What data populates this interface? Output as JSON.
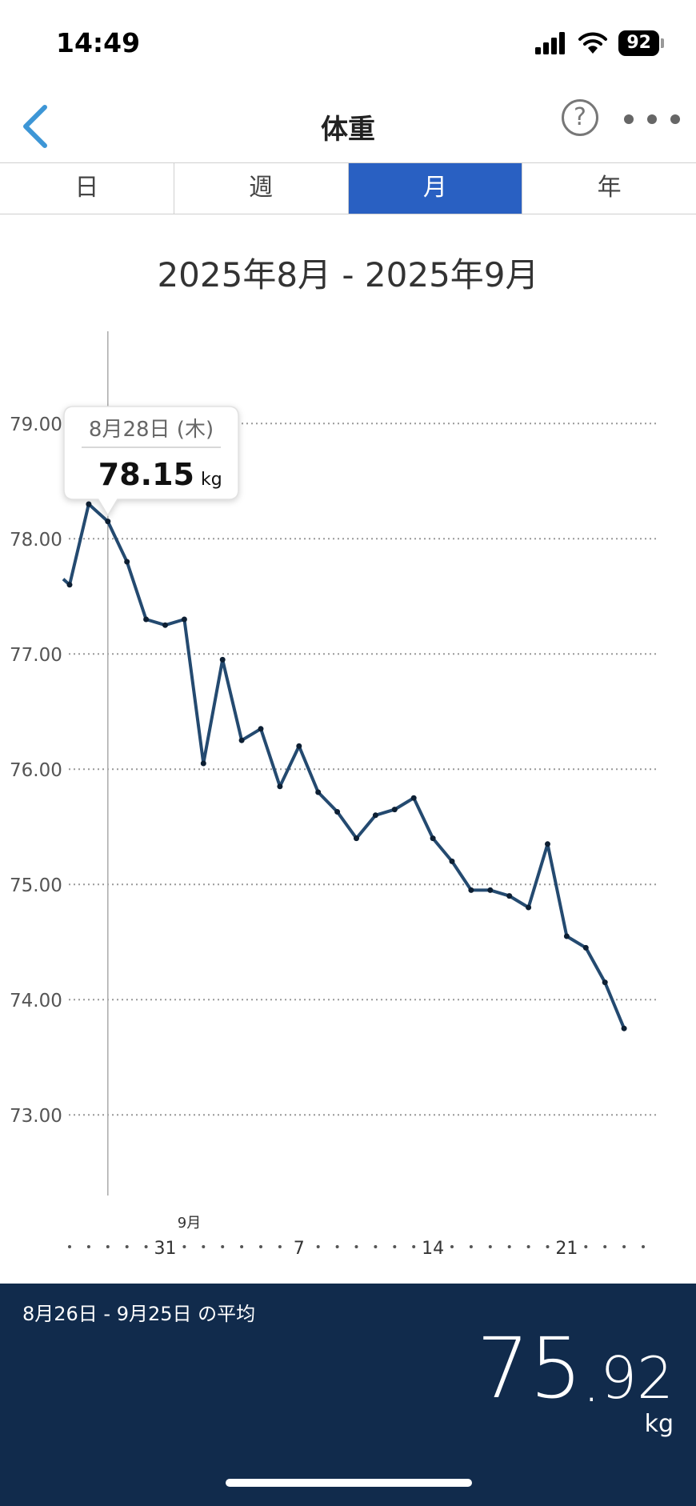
{
  "status": {
    "time": "14:49",
    "battery": "92"
  },
  "nav": {
    "title": "体重",
    "help_glyph": "?"
  },
  "tabs": [
    {
      "label": "日"
    },
    {
      "label": "週"
    },
    {
      "label": "月"
    },
    {
      "label": "年"
    }
  ],
  "date_range": "2025年8月 - 2025年9月",
  "tooltip": {
    "date": "8月28日 (木)",
    "value": "78.15",
    "unit": "kg"
  },
  "summary": {
    "label": "8月26日 - 9月25日 の平均",
    "value_int": "75",
    "value_dot": ".",
    "value_dec": "92",
    "unit": "kg"
  },
  "colors": {
    "accent": "#2960c2",
    "line": "#244a70",
    "summary_bg": "#112b4c"
  },
  "chart_data": {
    "type": "line",
    "title": "",
    "xlabel": "",
    "ylabel": "",
    "ylim": [
      72.3,
      79.8
    ],
    "y_ticks": [
      "79.00",
      "78.00",
      "77.00",
      "76.00",
      "75.00",
      "74.00",
      "73.00"
    ],
    "y_tick_values": [
      79,
      78,
      77,
      76,
      75,
      74,
      73
    ],
    "month_label": "9月",
    "x_tick_labels": [
      {
        "label": "31",
        "day": 5
      },
      {
        "label": "7",
        "day": 12
      },
      {
        "label": "14",
        "day": 19
      },
      {
        "label": "21",
        "day": 26
      }
    ],
    "x_days": 31,
    "selected_day": 2,
    "series": [
      {
        "days": [
          0,
          1,
          2,
          3,
          4,
          5,
          6,
          7,
          8,
          9,
          10,
          11,
          12,
          13,
          14,
          15,
          16,
          17,
          18,
          19,
          20,
          21,
          22,
          23,
          24,
          25,
          26,
          27,
          28,
          29
        ],
        "values": [
          77.6,
          78.3,
          78.15,
          77.8,
          77.3,
          77.25,
          77.3,
          76.05,
          76.95,
          76.25,
          76.35,
          75.85,
          76.2,
          75.8,
          75.63,
          75.4,
          75.6,
          75.65,
          75.75,
          75.4,
          75.2,
          74.95,
          74.95,
          74.9,
          74.8,
          75.35,
          74.55,
          74.45,
          74.15,
          73.75
        ]
      }
    ],
    "grid": true
  }
}
